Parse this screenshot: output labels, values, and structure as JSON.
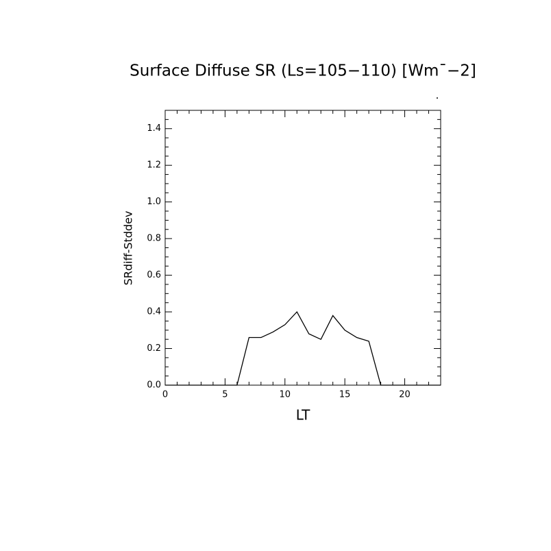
{
  "chart_data": {
    "type": "line",
    "title": "Surface Diffuse SR (Ls=105−110) [Wm¯−2]",
    "x_label": "LT",
    "y_label": "SRdiff-Stddev",
    "x": [
      0,
      1,
      2,
      3,
      4,
      5,
      6,
      7,
      8,
      9,
      10,
      11,
      12,
      13,
      14,
      15,
      16,
      17,
      18,
      19,
      20,
      21,
      22,
      23
    ],
    "series": [
      {
        "name": "SRdiff-Stddev",
        "color": "#000000",
        "values": [
          0,
          0,
          0,
          0,
          0,
          0,
          0,
          0.26,
          0.26,
          0.29,
          0.33,
          0.4,
          0.28,
          0.25,
          0.38,
          0.3,
          0.26,
          0.24,
          0,
          0,
          0,
          0,
          0,
          0
        ]
      }
    ],
    "xlim": [
      0,
      23
    ],
    "ylim": [
      0,
      1.5
    ],
    "xticks": [
      0,
      5,
      10,
      15,
      20
    ],
    "yticks": [
      {
        "value": 0,
        "label": "0.0"
      },
      {
        "value": 0.2,
        "label": "0.2"
      },
      {
        "value": 0.4,
        "label": "0.4"
      },
      {
        "value": 0.6,
        "label": "0.6"
      },
      {
        "value": 0.8,
        "label": "0.8"
      },
      {
        "value": 1.0,
        "label": "1.0"
      },
      {
        "value": 1.2,
        "label": "1.2"
      },
      {
        "value": 1.4,
        "label": "1.4"
      }
    ],
    "minor_xticks": [
      1,
      2,
      3,
      4,
      6,
      7,
      8,
      9,
      11,
      12,
      13,
      14,
      16,
      17,
      18,
      19,
      21,
      22
    ],
    "minor_yticks": [
      0.05,
      0.1,
      0.15,
      0.25,
      0.3,
      0.35,
      0.45,
      0.5,
      0.55,
      0.65,
      0.7,
      0.75,
      0.85,
      0.9,
      0.95,
      1.05,
      1.1,
      1.15,
      1.25,
      1.3,
      1.35,
      1.45
    ]
  }
}
